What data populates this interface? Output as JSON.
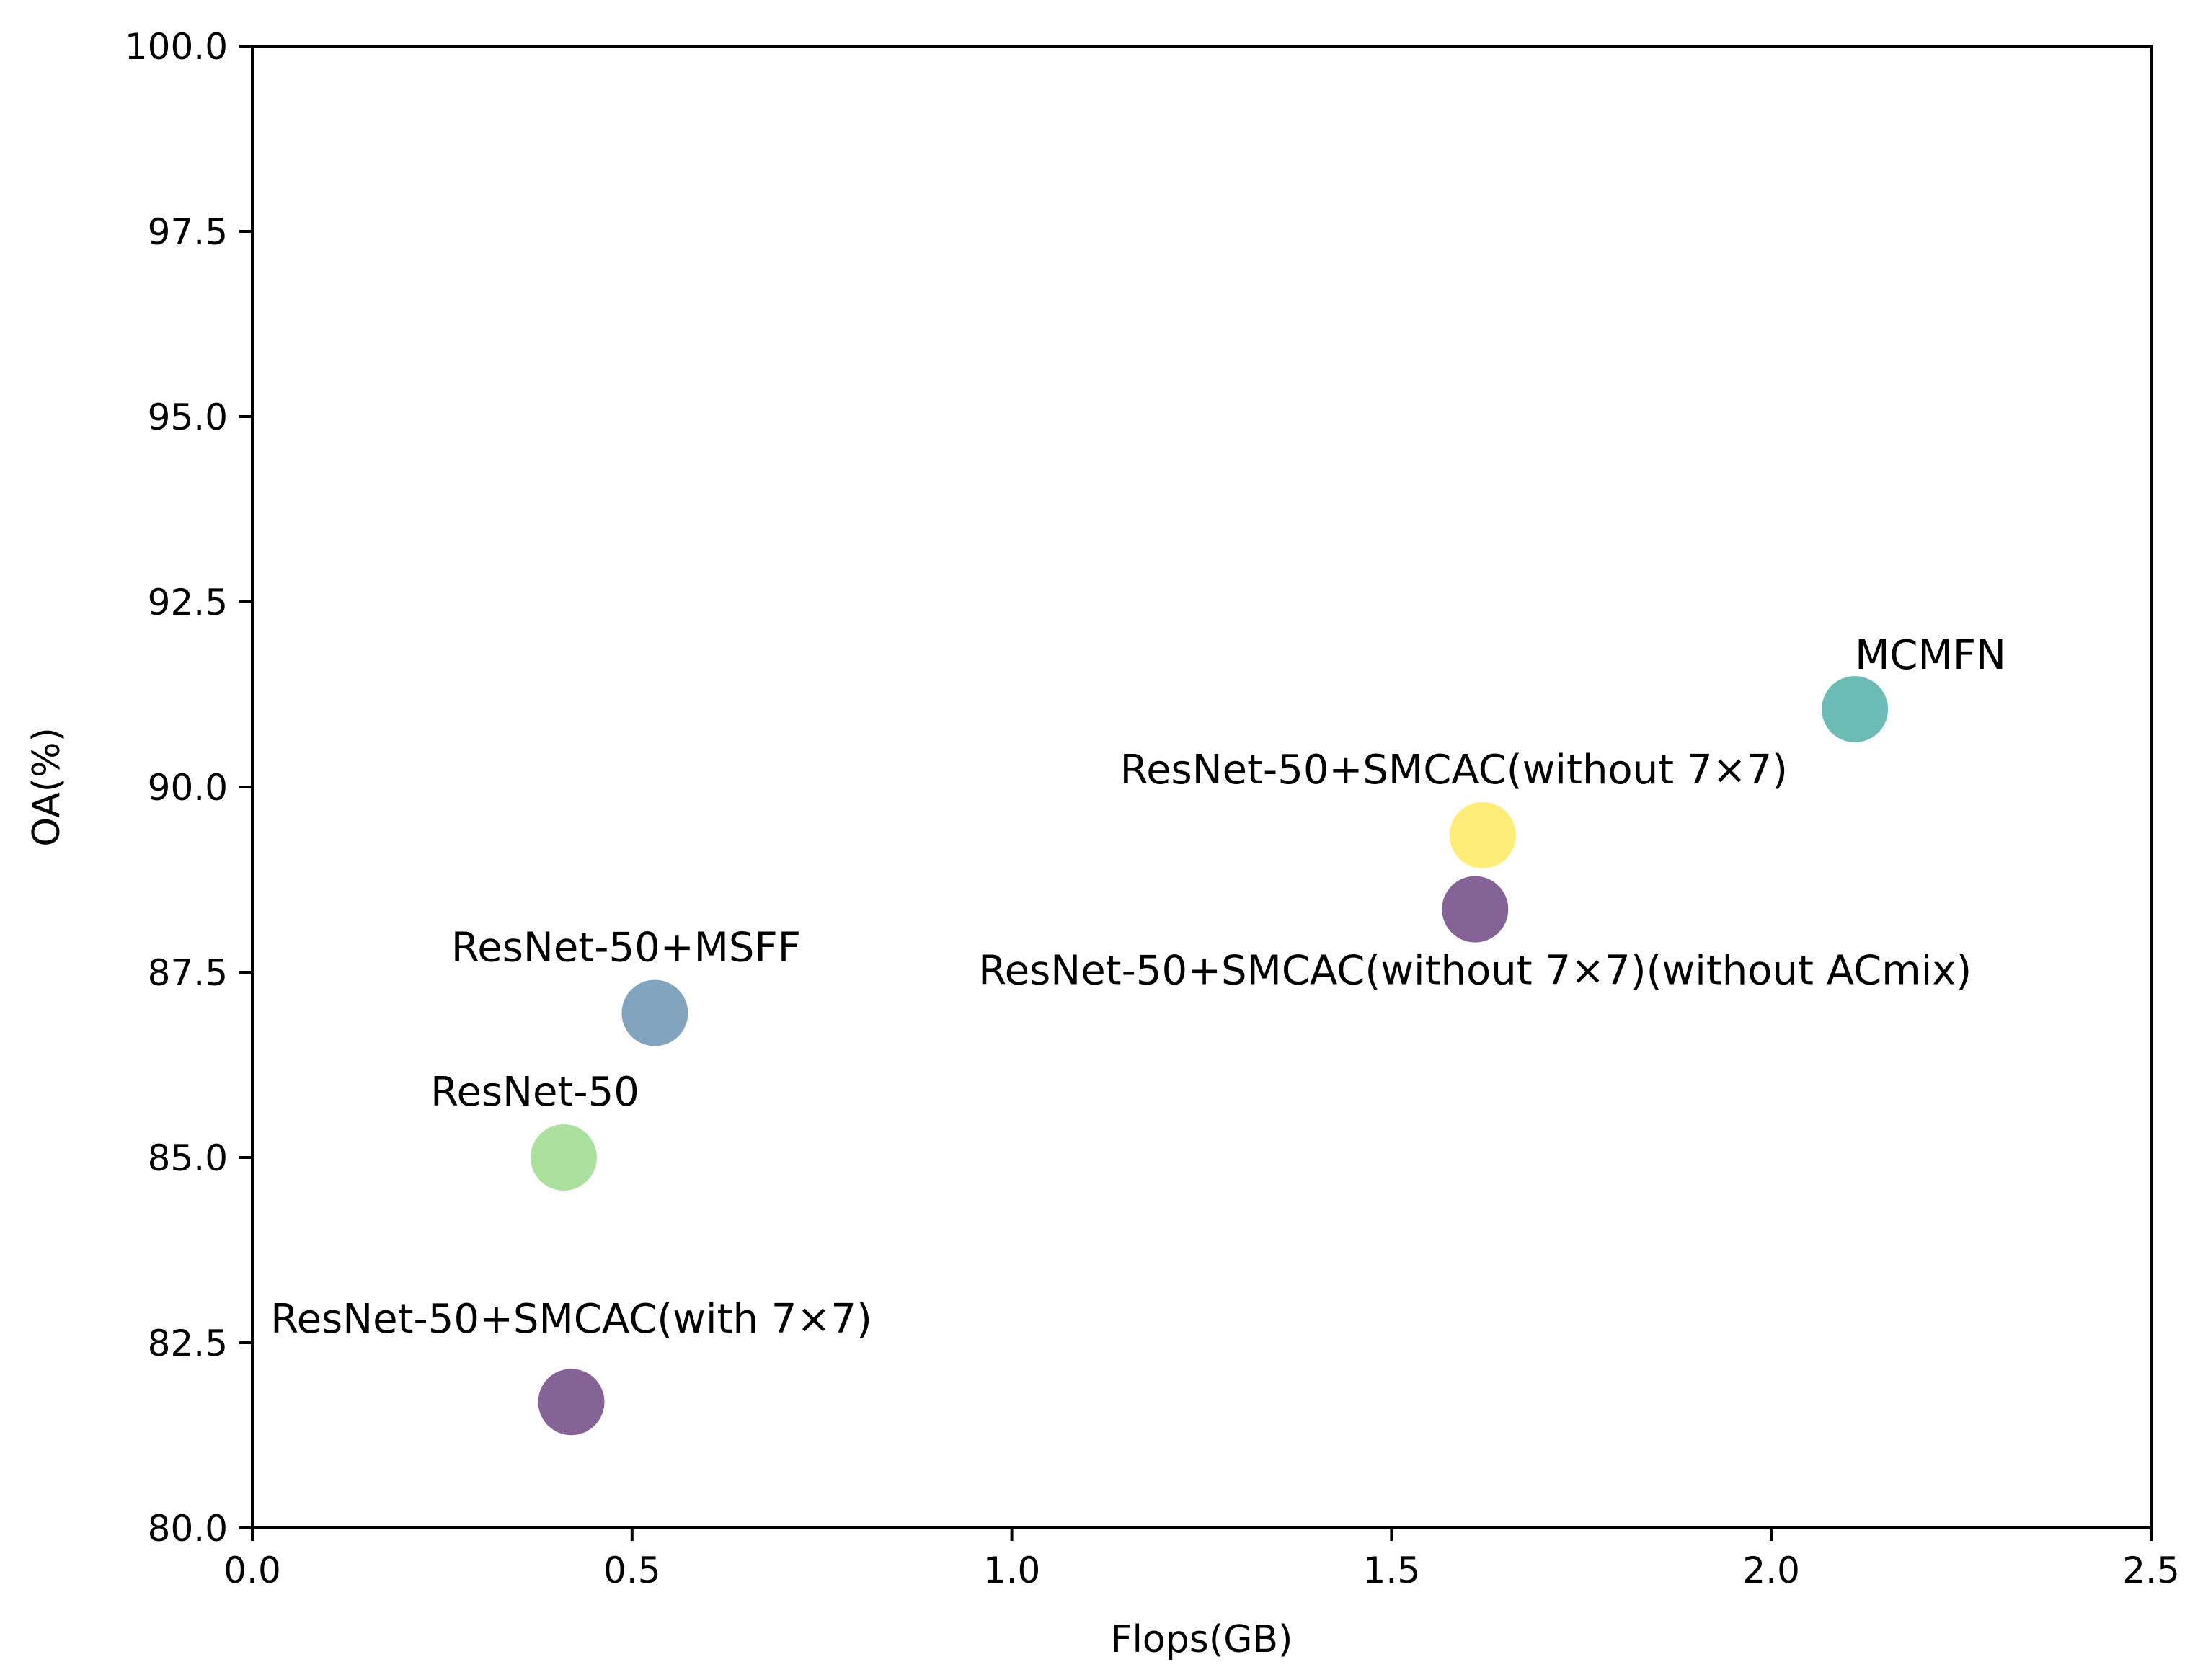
{
  "chart_data": {
    "type": "scatter",
    "title": "",
    "xlabel": "Flops(GB)",
    "ylabel": "OA(%)",
    "xlim": [
      0.0,
      2.5
    ],
    "ylim": [
      80.0,
      100.0
    ],
    "xticks": [
      "0.0",
      "0.5",
      "1.0",
      "1.5",
      "2.0",
      "2.5"
    ],
    "yticks": [
      "80.0",
      "82.5",
      "85.0",
      "87.5",
      "90.0",
      "92.5",
      "95.0",
      "97.5",
      "100.0"
    ],
    "grid": false,
    "points": [
      {
        "name": "ResNet-50",
        "x": 0.41,
        "y": 85.0,
        "color": "#8fd67d",
        "label_anchor": "above-left"
      },
      {
        "name": "ResNet-50+MSFF",
        "x": 0.53,
        "y": 86.95,
        "color": "#5a86a8",
        "label_anchor": "above-left"
      },
      {
        "name": "ResNet-50+SMCAC(with 7×7)",
        "x": 0.42,
        "y": 81.7,
        "color": "#5e2f73",
        "label_anchor": "above"
      },
      {
        "name": "ResNet-50+SMCAC(without 7×7)",
        "x": 1.62,
        "y": 89.35,
        "color": "#fde74c",
        "label_anchor": "above-left"
      },
      {
        "name": "ResNet-50+SMCAC(without 7×7)(without ACmix)",
        "x": 1.61,
        "y": 88.35,
        "color": "#5e2f73",
        "label_anchor": "below"
      },
      {
        "name": "MCMFN",
        "x": 2.11,
        "y": 91.05,
        "color": "#3aa59b",
        "label_anchor": "above-right"
      }
    ]
  }
}
